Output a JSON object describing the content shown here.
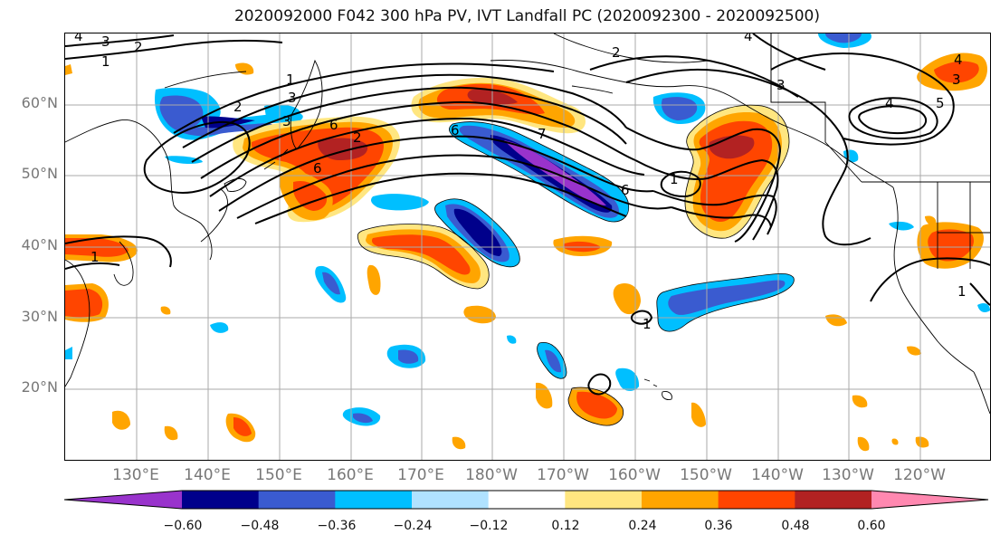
{
  "title": "2020092000 F042 300 hPa PV, IVT Landfall PC (2020092300 - 2020092500)",
  "lat_labels": [
    "60°N",
    "50°N",
    "40°N",
    "30°N",
    "20°N"
  ],
  "lon_labels": [
    "130°E",
    "140°E",
    "150°E",
    "160°E",
    "170°E",
    "180°W",
    "170°W",
    "160°W",
    "150°W",
    "140°W",
    "130°W",
    "120°W"
  ],
  "colorbar": {
    "tick_labels": [
      "−0.60",
      "−0.48",
      "−0.36",
      "−0.24",
      "−0.12",
      "0.12",
      "0.24",
      "0.36",
      "0.48",
      "0.60"
    ],
    "colors": [
      "#9933cc",
      "#00008b",
      "#3a5bd0",
      "#00bfff",
      "#b0e2ff",
      "#ffffff",
      "#ffe680",
      "#ffa500",
      "#ff4500",
      "#b22222",
      "#ff88b0"
    ]
  },
  "contour_labels": [
    "3",
    "1",
    "4",
    "2",
    "1",
    "2",
    "3",
    "3",
    "6",
    "2",
    "6",
    "6",
    "2",
    "7",
    "1",
    "6",
    "1",
    "3",
    "4",
    "4",
    "5",
    "3",
    "4",
    "1",
    "1"
  ]
}
